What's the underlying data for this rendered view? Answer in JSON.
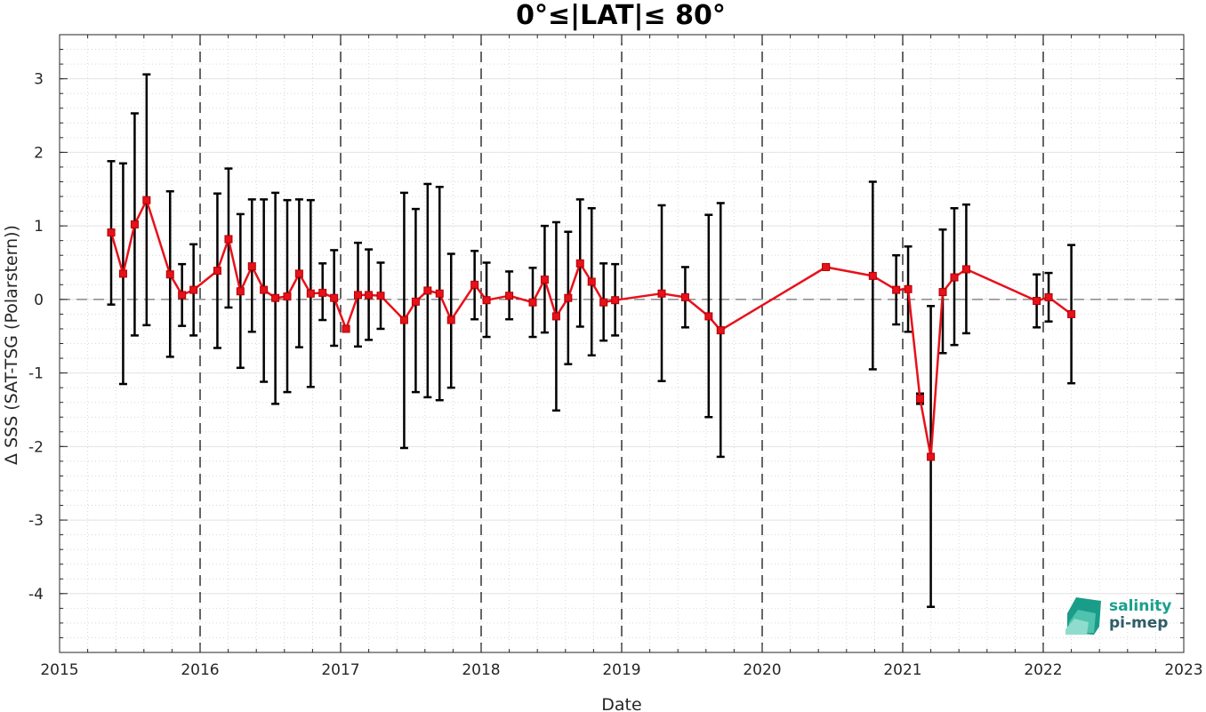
{
  "chart_data": {
    "type": "line",
    "title": "0°≤|LAT|≤ 80°",
    "xlabel": "Date",
    "ylabel": "Δ SSS (SAT-TSG (Polarstern))",
    "xlim": [
      "2015-01-01",
      "2023-01-01"
    ],
    "ylim": [
      -4.8,
      3.6
    ],
    "x_ticks": [
      "2015",
      "2016",
      "2017",
      "2018",
      "2019",
      "2020",
      "2021",
      "2022",
      "2023"
    ],
    "y_ticks": [
      3,
      2,
      1,
      0,
      -1,
      -2,
      -3,
      -4
    ],
    "y_tick_labels": [
      "3",
      "2",
      "1",
      "0",
      "-1",
      "-2",
      "-3",
      "-4"
    ],
    "grid": true,
    "vertical_reference_lines": [
      "2016-01-01",
      "2017-01-01",
      "2018-01-01",
      "2019-01-01",
      "2020-01-01",
      "2021-01-01",
      "2022-01-01"
    ],
    "horizontal_reference_line": 0,
    "series": [
      {
        "color": "#e8101a",
        "errorbar_color": "#000000",
        "points": [
          {
            "x": "2015-05-15",
            "y": 0.91,
            "lo": -0.07,
            "hi": 1.88
          },
          {
            "x": "2015-06-15",
            "y": 0.35,
            "lo": -1.15,
            "hi": 1.85
          },
          {
            "x": "2015-07-15",
            "y": 1.02,
            "lo": -0.49,
            "hi": 2.53
          },
          {
            "x": "2015-08-15",
            "y": 1.35,
            "lo": -0.35,
            "hi": 3.06
          },
          {
            "x": "2015-10-15",
            "y": 0.34,
            "lo": -0.78,
            "hi": 1.47
          },
          {
            "x": "2015-11-15",
            "y": 0.06,
            "lo": -0.36,
            "hi": 0.48
          },
          {
            "x": "2015-12-15",
            "y": 0.13,
            "lo": -0.49,
            "hi": 0.75
          },
          {
            "x": "2016-02-15",
            "y": 0.39,
            "lo": -0.66,
            "hi": 1.44
          },
          {
            "x": "2016-03-15",
            "y": 0.82,
            "lo": -0.11,
            "hi": 1.78
          },
          {
            "x": "2016-04-15",
            "y": 0.11,
            "lo": -0.93,
            "hi": 1.16
          },
          {
            "x": "2016-05-15",
            "y": 0.45,
            "lo": -0.44,
            "hi": 1.36
          },
          {
            "x": "2016-06-15",
            "y": 0.13,
            "lo": -1.12,
            "hi": 1.36
          },
          {
            "x": "2016-07-15",
            "y": 0.02,
            "lo": -1.42,
            "hi": 1.45
          },
          {
            "x": "2016-08-15",
            "y": 0.04,
            "lo": -1.26,
            "hi": 1.35
          },
          {
            "x": "2016-09-15",
            "y": 0.35,
            "lo": -0.65,
            "hi": 1.36
          },
          {
            "x": "2016-10-15",
            "y": 0.08,
            "lo": -1.19,
            "hi": 1.35
          },
          {
            "x": "2016-11-15",
            "y": 0.09,
            "lo": -0.28,
            "hi": 0.49
          },
          {
            "x": "2016-12-15",
            "y": 0.02,
            "lo": -0.63,
            "hi": 0.67
          },
          {
            "x": "2017-01-15",
            "y": -0.4,
            "lo": -0.42,
            "hi": -0.38
          },
          {
            "x": "2017-02-15",
            "y": 0.06,
            "lo": -0.64,
            "hi": 0.77
          },
          {
            "x": "2017-03-15",
            "y": 0.06,
            "lo": -0.55,
            "hi": 0.68
          },
          {
            "x": "2017-04-15",
            "y": 0.05,
            "lo": -0.4,
            "hi": 0.5
          },
          {
            "x": "2017-06-15",
            "y": -0.28,
            "lo": -2.02,
            "hi": 1.45
          },
          {
            "x": "2017-07-15",
            "y": -0.03,
            "lo": -1.26,
            "hi": 1.23
          },
          {
            "x": "2017-08-15",
            "y": 0.12,
            "lo": -1.33,
            "hi": 1.57
          },
          {
            "x": "2017-09-15",
            "y": 0.08,
            "lo": -1.37,
            "hi": 1.53
          },
          {
            "x": "2017-10-15",
            "y": -0.28,
            "lo": -1.2,
            "hi": 0.62
          },
          {
            "x": "2017-12-15",
            "y": 0.2,
            "lo": -0.27,
            "hi": 0.66
          },
          {
            "x": "2018-01-15",
            "y": -0.01,
            "lo": -0.51,
            "hi": 0.5
          },
          {
            "x": "2018-03-15",
            "y": 0.05,
            "lo": -0.27,
            "hi": 0.38
          },
          {
            "x": "2018-05-15",
            "y": -0.04,
            "lo": -0.51,
            "hi": 0.43
          },
          {
            "x": "2018-06-15",
            "y": 0.27,
            "lo": -0.45,
            "hi": 1.0
          },
          {
            "x": "2018-07-15",
            "y": -0.23,
            "lo": -1.51,
            "hi": 1.05
          },
          {
            "x": "2018-08-15",
            "y": 0.02,
            "lo": -0.88,
            "hi": 0.92
          },
          {
            "x": "2018-09-15",
            "y": 0.49,
            "lo": -0.37,
            "hi": 1.36
          },
          {
            "x": "2018-10-15",
            "y": 0.24,
            "lo": -0.76,
            "hi": 1.24
          },
          {
            "x": "2018-11-15",
            "y": -0.04,
            "lo": -0.56,
            "hi": 0.49
          },
          {
            "x": "2018-12-15",
            "y": -0.01,
            "lo": -0.49,
            "hi": 0.48
          },
          {
            "x": "2019-04-15",
            "y": 0.08,
            "lo": -1.11,
            "hi": 1.28
          },
          {
            "x": "2019-06-15",
            "y": 0.03,
            "lo": -0.38,
            "hi": 0.44
          },
          {
            "x": "2019-08-15",
            "y": -0.23,
            "lo": -1.6,
            "hi": 1.15
          },
          {
            "x": "2019-09-15",
            "y": -0.42,
            "lo": -2.14,
            "hi": 1.31
          },
          {
            "x": "2020-06-15",
            "y": 0.44,
            "lo": 0.42,
            "hi": 0.46
          },
          {
            "x": "2020-10-15",
            "y": 0.32,
            "lo": -0.95,
            "hi": 1.6
          },
          {
            "x": "2020-12-15",
            "y": 0.13,
            "lo": -0.34,
            "hi": 0.6
          },
          {
            "x": "2021-01-15",
            "y": 0.14,
            "lo": -0.44,
            "hi": 0.72
          },
          {
            "x": "2021-02-15",
            "y": -1.35,
            "lo": -1.42,
            "hi": -1.28
          },
          {
            "x": "2021-03-15",
            "y": -2.14,
            "lo": -4.18,
            "hi": -0.09
          },
          {
            "x": "2021-04-15",
            "y": 0.1,
            "lo": -0.73,
            "hi": 0.95
          },
          {
            "x": "2021-05-15",
            "y": 0.3,
            "lo": -0.62,
            "hi": 1.24
          },
          {
            "x": "2021-06-15",
            "y": 0.41,
            "lo": -0.46,
            "hi": 1.29
          },
          {
            "x": "2021-12-15",
            "y": -0.02,
            "lo": -0.38,
            "hi": 0.34
          },
          {
            "x": "2022-01-15",
            "y": 0.03,
            "lo": -0.3,
            "hi": 0.36
          },
          {
            "x": "2022-03-15",
            "y": -0.2,
            "lo": -1.14,
            "hi": 0.74
          }
        ]
      }
    ]
  },
  "logo": {
    "line1": "salinity",
    "line2": "pi-mep"
  }
}
